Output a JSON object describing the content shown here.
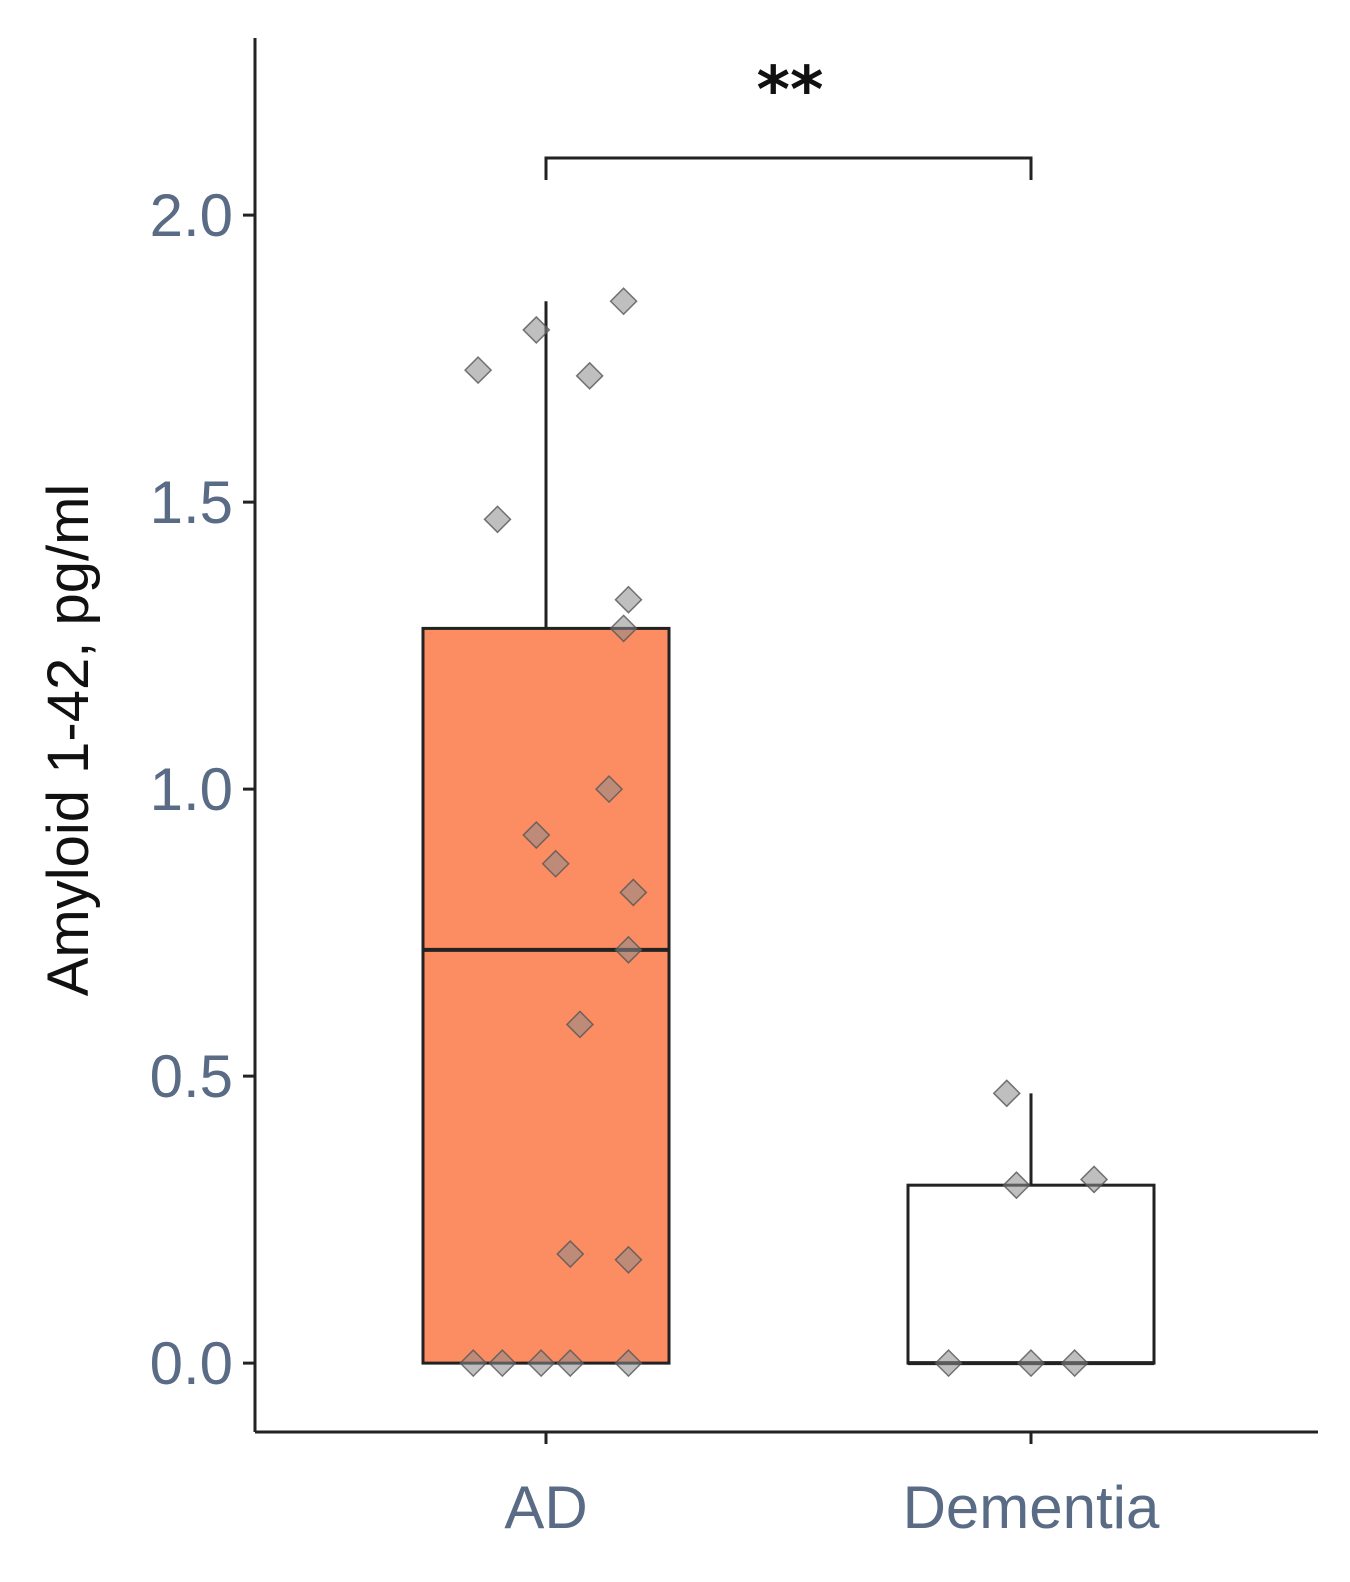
{
  "chart_data": {
    "type": "box",
    "ylabel": "Amyloid 1-42, pg/ml",
    "xlabel": "",
    "categories": [
      "AD",
      "Dementia"
    ],
    "ylim": [
      -0.12,
      2.32
    ],
    "yticks": [
      "0.0",
      "0.5",
      "1.0",
      "1.5",
      "2.0"
    ],
    "grid": false,
    "legend": "none",
    "boxes": [
      {
        "name": "AD",
        "fill": "#fc8d62",
        "min": 0.0,
        "q1": 0.0,
        "median": 0.72,
        "q3": 1.28,
        "max": 1.85,
        "points": [
          {
            "jitter": -0.14,
            "y": 1.73
          },
          {
            "jitter": -0.02,
            "y": 1.8
          },
          {
            "jitter": 0.09,
            "y": 1.72
          },
          {
            "jitter": 0.16,
            "y": 1.85
          },
          {
            "jitter": -0.1,
            "y": 1.47
          },
          {
            "jitter": 0.17,
            "y": 1.33
          },
          {
            "jitter": 0.16,
            "y": 1.28
          },
          {
            "jitter": 0.13,
            "y": 1.0
          },
          {
            "jitter": -0.02,
            "y": 0.92
          },
          {
            "jitter": 0.02,
            "y": 0.87
          },
          {
            "jitter": 0.18,
            "y": 0.82
          },
          {
            "jitter": 0.17,
            "y": 0.72
          },
          {
            "jitter": 0.07,
            "y": 0.59
          },
          {
            "jitter": 0.05,
            "y": 0.19
          },
          {
            "jitter": 0.17,
            "y": 0.18
          },
          {
            "jitter": -0.15,
            "y": 0.0
          },
          {
            "jitter": -0.09,
            "y": 0.0
          },
          {
            "jitter": -0.01,
            "y": 0.0
          },
          {
            "jitter": 0.05,
            "y": 0.0
          },
          {
            "jitter": 0.17,
            "y": 0.0
          }
        ]
      },
      {
        "name": "Dementia",
        "fill": "#ffffff",
        "min": 0.0,
        "q1": 0.0,
        "median": 0.0,
        "q3": 0.31,
        "max": 0.47,
        "points": [
          {
            "jitter": -0.05,
            "y": 0.47
          },
          {
            "jitter": -0.03,
            "y": 0.31
          },
          {
            "jitter": 0.13,
            "y": 0.32
          },
          {
            "jitter": -0.17,
            "y": 0.0
          },
          {
            "jitter": 0.0,
            "y": 0.0
          },
          {
            "jitter": 0.09,
            "y": 0.0
          }
        ]
      }
    ],
    "annotations": [
      {
        "type": "significance-bracket",
        "from": "AD",
        "to": "Dementia",
        "label": "**"
      }
    ],
    "colors": {
      "axis": "#222222",
      "tick_text": "#5a6b85",
      "point_fill": "#8a8a8a",
      "point_stroke": "#555555"
    }
  }
}
